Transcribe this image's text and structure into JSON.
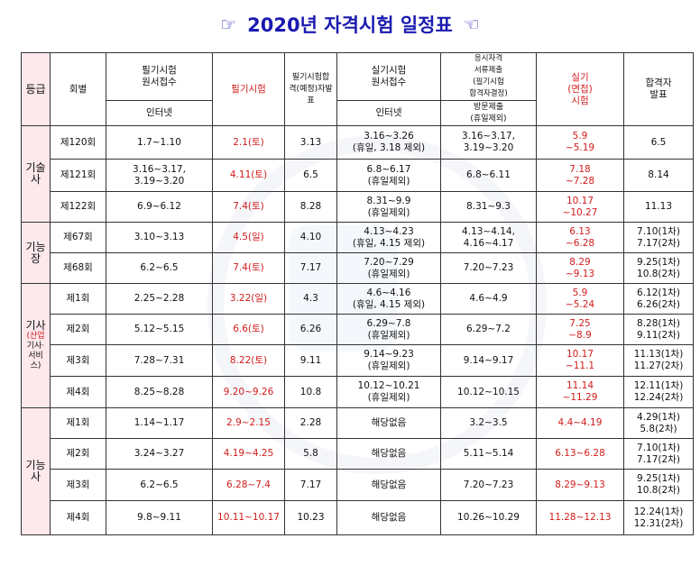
{
  "title": "2020년 자격시험 일정표",
  "header": {
    "grade": "등급",
    "round": "회별",
    "written_apply_line1": "필기시험",
    "written_apply_line2": "원서접수",
    "written_exam": "필기시험",
    "written_result_line1": "필기시험합",
    "written_result_line2": "격(예정)자발",
    "written_result_line3": "표",
    "practical_apply_line1": "실기시험",
    "practical_apply_line2": "원서접수",
    "docs_line1": "응시자격",
    "docs_line2": "서류제출",
    "docs_line3": "(필기시험",
    "docs_line4": "합격자결정)",
    "practical_exam_line1": "실기",
    "practical_exam_line2": "(면접)",
    "practical_exam_line3": "시험",
    "final_line1": "합격자",
    "final_line2": "발표",
    "internet1": "인터넷",
    "internet2": "인터넷",
    "visit_line1": "방문제출",
    "visit_line2": "(휴일제외)"
  },
  "groups": [
    {
      "grade_line1": "기술",
      "grade_line2": "사",
      "grade_line3": "",
      "grade_line4": "",
      "rows": [
        {
          "round": "제120회",
          "apply": "1.7~1.10",
          "apply2": "",
          "exam": "2.1(토)",
          "result": "3.13",
          "p_apply": "3.16~3.26",
          "p_apply2": "(휴일, 3.18 제외)",
          "docs": "3.16~3.17,",
          "docs2": "3.19~3.20",
          "p_exam": "5.9",
          "p_exam2": "~5.19",
          "final": "6.5",
          "final2": ""
        },
        {
          "round": "제121회",
          "apply": "3.16~3.17,",
          "apply2": "3.19~3.20",
          "exam": "4.11(토)",
          "result": "6.5",
          "p_apply": "6.8~6.17",
          "p_apply2": "(휴일제외)",
          "docs": "6.8~6.11",
          "docs2": "",
          "p_exam": "7.18",
          "p_exam2": "~7.28",
          "final": "8.14",
          "final2": ""
        },
        {
          "round": "제122회",
          "apply": "6.9~6.12",
          "apply2": "",
          "exam": "7.4(토)",
          "result": "8.28",
          "p_apply": "8.31~9.9",
          "p_apply2": "(휴일제외)",
          "docs": "8.31~9.3",
          "docs2": "",
          "p_exam": "10.17",
          "p_exam2": "~10.27",
          "final": "11.13",
          "final2": ""
        }
      ]
    },
    {
      "grade_line1": "기능",
      "grade_line2": "장",
      "grade_line3": "",
      "grade_line4": "",
      "rows": [
        {
          "round": "제67회",
          "apply": "3.10~3.13",
          "apply2": "",
          "exam": "4.5(일)",
          "result": "4.10",
          "p_apply": "4.13~4.23",
          "p_apply2": "(휴일, 4.15 제외)",
          "docs": "4.13~4.14,",
          "docs2": "4.16~4.17",
          "p_exam": "6.13",
          "p_exam2": "~6.28",
          "final": "7.10(1차)",
          "final2": "7.17(2차)"
        },
        {
          "round": "제68회",
          "apply": "6.2~6.5",
          "apply2": "",
          "exam": "7.4(토)",
          "result": "7.17",
          "p_apply": "7.20~7.29",
          "p_apply2": "(휴일제외)",
          "docs": "7.20~7.23",
          "docs2": "",
          "p_exam": "8.29",
          "p_exam2": "~9.13",
          "final": "9.25(1차)",
          "final2": "10.8(2차)"
        }
      ]
    },
    {
      "grade_line1": "기사",
      "grade_line2": "(산업",
      "grade_line3": "기사·서비",
      "grade_line4": "스)",
      "rows": [
        {
          "round": "제1회",
          "apply": "2.25~2.28",
          "apply2": "",
          "exam": "3.22(일)",
          "result": "4.3",
          "p_apply": "4.6~4.16",
          "p_apply2": "(휴일, 4.15 제외)",
          "docs": "4.6~4.9",
          "docs2": "",
          "p_exam": "5.9",
          "p_exam2": "~5.24",
          "final": "6.12(1차)",
          "final2": "6.26(2차)"
        },
        {
          "round": "제2회",
          "apply": "5.12~5.15",
          "apply2": "",
          "exam": "6.6(토)",
          "result": "6.26",
          "p_apply": "6.29~7.8",
          "p_apply2": "(휴일제외)",
          "docs": "6.29~7.2",
          "docs2": "",
          "p_exam": "7.25",
          "p_exam2": "~8.9",
          "final": "8.28(1차)",
          "final2": "9.11(2차)"
        },
        {
          "round": "제3회",
          "apply": "7.28~7.31",
          "apply2": "",
          "exam": "8.22(토)",
          "result": "9.11",
          "p_apply": "9.14~9.23",
          "p_apply2": "(휴일제외)",
          "docs": "9.14~9.17",
          "docs2": "",
          "p_exam": "10.17",
          "p_exam2": "~11.1",
          "final": "11.13(1차)",
          "final2": "11.27(2차)"
        },
        {
          "round": "제4회",
          "apply": "8.25~8.28",
          "apply2": "",
          "exam": "9.20~9.26",
          "result": "10.8",
          "p_apply": "10.12~10.21",
          "p_apply2": "(휴일제외)",
          "docs": "10.12~10.15",
          "docs2": "",
          "p_exam": "11.14",
          "p_exam2": "~11.29",
          "final": "12.11(1차)",
          "final2": "12.24(2차)"
        }
      ]
    },
    {
      "grade_line1": "기능",
      "grade_line2": "사",
      "grade_line3": "",
      "grade_line4": "",
      "rows": [
        {
          "round": "제1회",
          "apply": "1.14~1.17",
          "apply2": "",
          "exam": "2.9~2.15",
          "result": "2.28",
          "p_apply": "해당없음",
          "p_apply2": "",
          "docs": "3.2~3.5",
          "docs2": "",
          "p_exam": "4.4~4.19",
          "p_exam2": "",
          "final": "4.29(1차)",
          "final2": "5.8(2차)"
        },
        {
          "round": "제2회",
          "apply": "3.24~3.27",
          "apply2": "",
          "exam": "4.19~4.25",
          "result": "5.8",
          "p_apply": "해당없음",
          "p_apply2": "",
          "docs": "5.11~5.14",
          "docs2": "",
          "p_exam": "6.13~6.28",
          "p_exam2": "",
          "final": "7.10(1차)",
          "final2": "7.17(2차)"
        },
        {
          "round": "제3회",
          "apply": "6.2~6.5",
          "apply2": "",
          "exam": "6.28~7.4",
          "result": "7.17",
          "p_apply": "해당없음",
          "p_apply2": "",
          "docs": "7.20~7.23",
          "docs2": "",
          "p_exam": "8.29~9.13",
          "p_exam2": "",
          "final": "9.25(1차)",
          "final2": "10.8(2차)"
        },
        {
          "round": "제4회",
          "apply": "9.8~9.11",
          "apply2": "",
          "exam": "10.11~10.17",
          "result": "10.23",
          "p_apply": "해당없음",
          "p_apply2": "",
          "docs": "10.26~10.29",
          "docs2": "",
          "p_exam": "11.28~12.13",
          "p_exam2": "",
          "final": "12.24(1차)",
          "final2": "12.31(2차)"
        }
      ]
    }
  ]
}
